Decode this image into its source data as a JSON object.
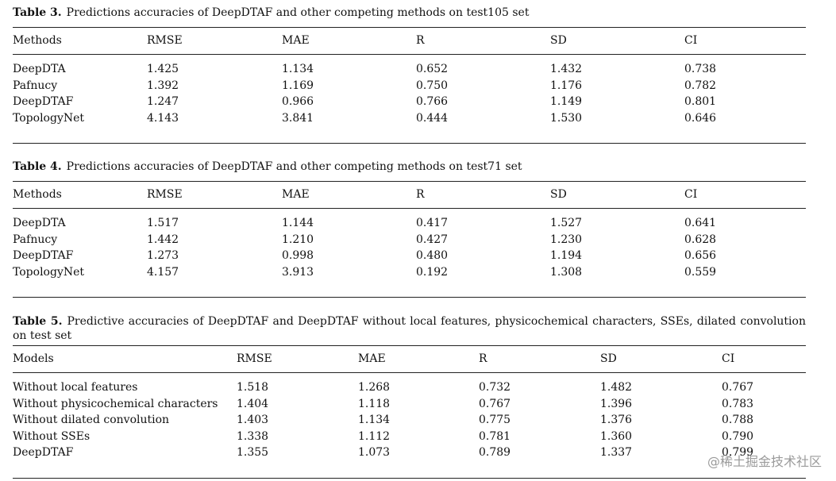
{
  "tables": [
    {
      "label": "Table 3.",
      "caption": "Predictions accuracies of DeepDTAF and other competing methods on test105 set",
      "header": [
        "Methods",
        "RMSE",
        "MAE",
        "R",
        "SD",
        "CI"
      ],
      "rows": [
        [
          "DeepDTA",
          "1.425",
          "1.134",
          "0.652",
          "1.432",
          "0.738"
        ],
        [
          "Pafnucy",
          "1.392",
          "1.169",
          "0.750",
          "1.176",
          "0.782"
        ],
        [
          "DeepDTAF",
          "1.247",
          "0.966",
          "0.766",
          "1.149",
          "0.801"
        ],
        [
          "TopologyNet",
          "4.143",
          "3.841",
          "0.444",
          "1.530",
          "0.646"
        ]
      ]
    },
    {
      "label": "Table 4.",
      "caption": "Predictions accuracies of DeepDTAF and other competing methods on test71 set",
      "header": [
        "Methods",
        "RMSE",
        "MAE",
        "R",
        "SD",
        "CI"
      ],
      "rows": [
        [
          "DeepDTA",
          "1.517",
          "1.144",
          "0.417",
          "1.527",
          "0.641"
        ],
        [
          "Pafnucy",
          "1.442",
          "1.210",
          "0.427",
          "1.230",
          "0.628"
        ],
        [
          "DeepDTAF",
          "1.273",
          "0.998",
          "0.480",
          "1.194",
          "0.656"
        ],
        [
          "TopologyNet",
          "4.157",
          "3.913",
          "0.192",
          "1.308",
          "0.559"
        ]
      ]
    },
    {
      "label": "Table 5.",
      "caption": "Predictive accuracies of DeepDTAF and DeepDTAF without local features, physicochemical characters, SSEs, dilated convolution on test set",
      "header": [
        "Models",
        "RMSE",
        "MAE",
        "R",
        "SD",
        "CI"
      ],
      "rows": [
        [
          "Without local features",
          "1.518",
          "1.268",
          "0.732",
          "1.482",
          "0.767"
        ],
        [
          "Without physicochemical characters",
          "1.404",
          "1.118",
          "0.767",
          "1.396",
          "0.783"
        ],
        [
          "Without dilated convolution",
          "1.403",
          "1.134",
          "0.775",
          "1.376",
          "0.788"
        ],
        [
          "Without SSEs",
          "1.338",
          "1.112",
          "0.781",
          "1.360",
          "0.790"
        ],
        [
          "DeepDTAF",
          "1.355",
          "1.073",
          "0.789",
          "1.337",
          "0.799"
        ]
      ]
    }
  ],
  "watermark": "@稀土掘金技术社区"
}
